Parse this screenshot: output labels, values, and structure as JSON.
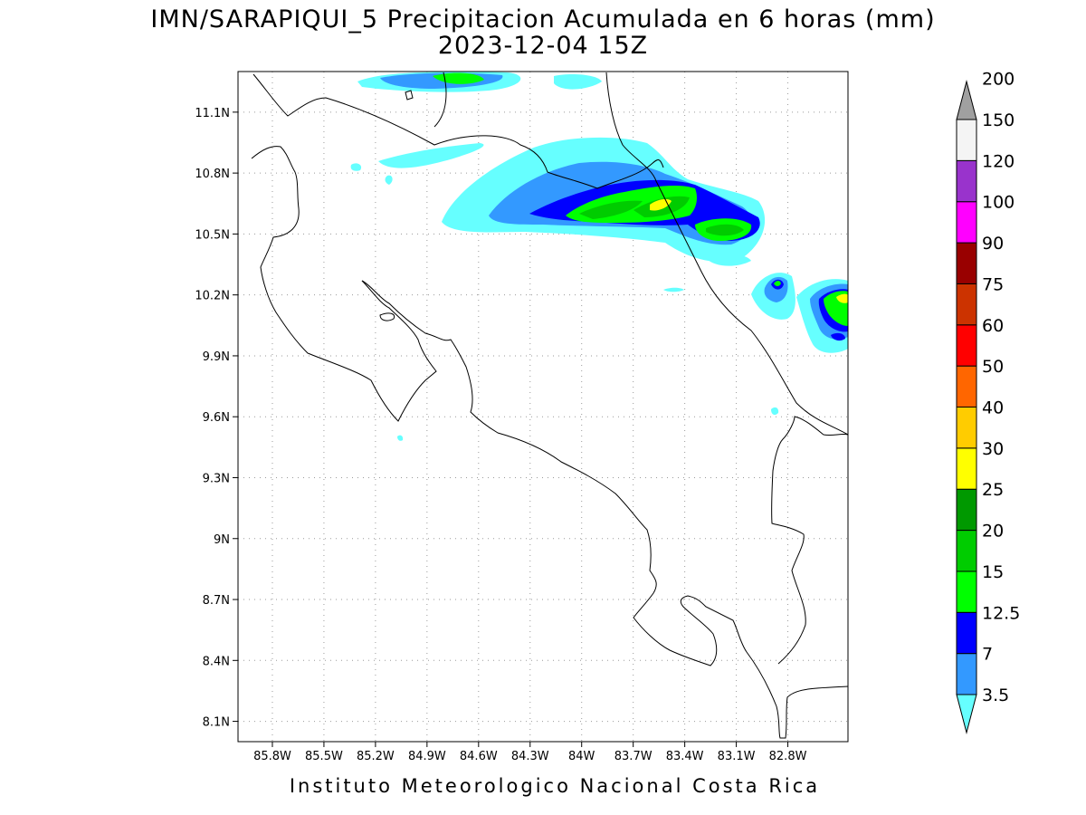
{
  "title": {
    "line1": "IMN/SARAPIQUI_5 Precipitacion Acumulada en 6 horas (mm)",
    "line2": "2023-12-04 15Z"
  },
  "footer": "Instituto Meteorologico Nacional Costa Rica",
  "map": {
    "lon_range": [
      -86.0,
      -82.45
    ],
    "lat_range": [
      8.0,
      11.3
    ],
    "lat_ticks": [
      {
        "value": 8.1,
        "label": "8.1N"
      },
      {
        "value": 8.4,
        "label": "8.4N"
      },
      {
        "value": 8.7,
        "label": "8.7N"
      },
      {
        "value": 9.0,
        "label": "9N"
      },
      {
        "value": 9.3,
        "label": "9.3N"
      },
      {
        "value": 9.6,
        "label": "9.6N"
      },
      {
        "value": 9.9,
        "label": "9.9N"
      },
      {
        "value": 10.2,
        "label": "10.2N"
      },
      {
        "value": 10.5,
        "label": "10.5N"
      },
      {
        "value": 10.8,
        "label": "10.8N"
      },
      {
        "value": 11.1,
        "label": "11.1N"
      }
    ],
    "lon_ticks": [
      {
        "value": -85.8,
        "label": "85.8W"
      },
      {
        "value": -85.5,
        "label": "85.5W"
      },
      {
        "value": -85.2,
        "label": "85.2W"
      },
      {
        "value": -84.9,
        "label": "84.9W"
      },
      {
        "value": -84.6,
        "label": "84.6W"
      },
      {
        "value": -84.3,
        "label": "84.3W"
      },
      {
        "value": -84.0,
        "label": "84W"
      },
      {
        "value": -83.7,
        "label": "83.7W"
      },
      {
        "value": -83.4,
        "label": "83.4W"
      },
      {
        "value": -83.1,
        "label": "83.1W"
      },
      {
        "value": -82.8,
        "label": "82.8W"
      }
    ],
    "grid": true
  },
  "colorbar": {
    "units": "mm",
    "levels": [
      {
        "label": "3.5",
        "color": "#66ffff"
      },
      {
        "label": "7",
        "color": "#3399ff"
      },
      {
        "label": "12.5",
        "color": "#0000ff"
      },
      {
        "label": "15",
        "color": "#00ff00"
      },
      {
        "label": "20",
        "color": "#00cc00"
      },
      {
        "label": "25",
        "color": "#009900"
      },
      {
        "label": "30",
        "color": "#ffff00"
      },
      {
        "label": "40",
        "color": "#ffcc00"
      },
      {
        "label": "50",
        "color": "#ff6600"
      },
      {
        "label": "60",
        "color": "#ff0000"
      },
      {
        "label": "75",
        "color": "#cc3300"
      },
      {
        "label": "90",
        "color": "#990000"
      },
      {
        "label": "100",
        "color": "#ff00ff"
      },
      {
        "label": "120",
        "color": "#9933cc"
      },
      {
        "label": "150",
        "color": "#f4f4f4"
      },
      {
        "label": "200",
        "color": "#a0a0a0"
      }
    ]
  }
}
